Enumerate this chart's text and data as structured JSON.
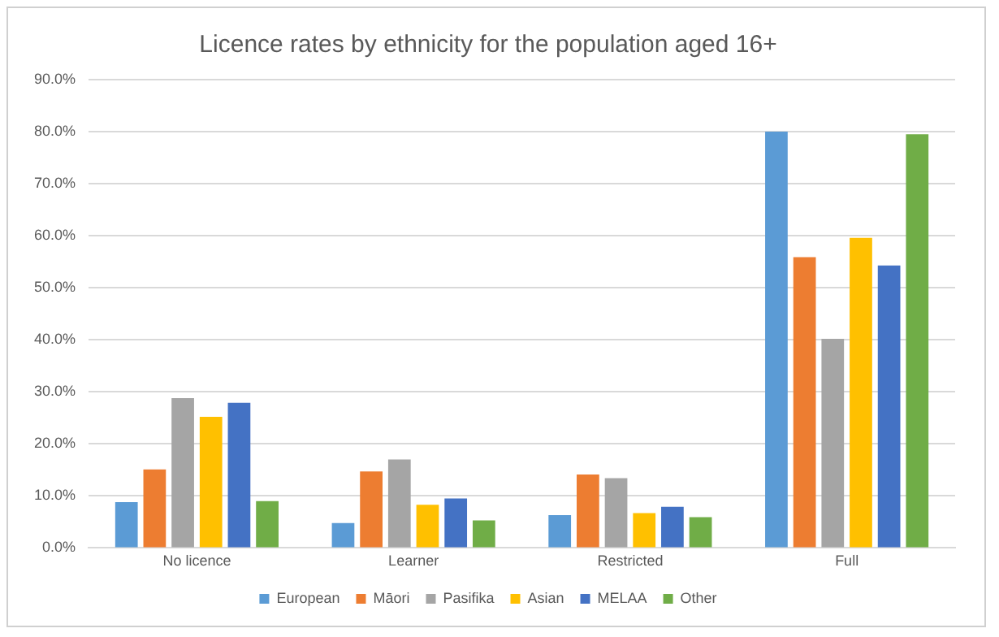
{
  "chart_data": {
    "type": "bar",
    "title": "Licence rates by ethnicity for the population aged 16+",
    "categories": [
      "No licence",
      "Learner",
      "Restricted",
      "Full"
    ],
    "series": [
      {
        "name": "European",
        "color": "#5b9bd5",
        "values": [
          8.8,
          4.8,
          6.3,
          80.0
        ]
      },
      {
        "name": "Māori",
        "color": "#ed7d31",
        "values": [
          15.1,
          14.7,
          14.1,
          55.9
        ]
      },
      {
        "name": "Pasifika",
        "color": "#a5a5a5",
        "values": [
          28.8,
          17.0,
          13.4,
          40.2
        ]
      },
      {
        "name": "Asian",
        "color": "#ffc000",
        "values": [
          25.2,
          8.3,
          6.7,
          59.6
        ]
      },
      {
        "name": "MELAA",
        "color": "#4472c4",
        "values": [
          27.9,
          9.5,
          7.9,
          54.3
        ]
      },
      {
        "name": "Other",
        "color": "#70ad47",
        "values": [
          9.0,
          5.3,
          5.9,
          79.5
        ]
      }
    ],
    "ylim": [
      0,
      90
    ],
    "yticks": [
      {
        "value": 0,
        "label": "0.0%"
      },
      {
        "value": 10,
        "label": "10.0%"
      },
      {
        "value": 20,
        "label": "20.0%"
      },
      {
        "value": 30,
        "label": "30.0%"
      },
      {
        "value": 40,
        "label": "40.0%"
      },
      {
        "value": 50,
        "label": "50.0%"
      },
      {
        "value": 60,
        "label": "60.0%"
      },
      {
        "value": 70,
        "label": "70.0%"
      },
      {
        "value": 80,
        "label": "80.0%"
      },
      {
        "value": 90,
        "label": "90.0%"
      }
    ],
    "grid": "y",
    "legend": "bottom"
  }
}
